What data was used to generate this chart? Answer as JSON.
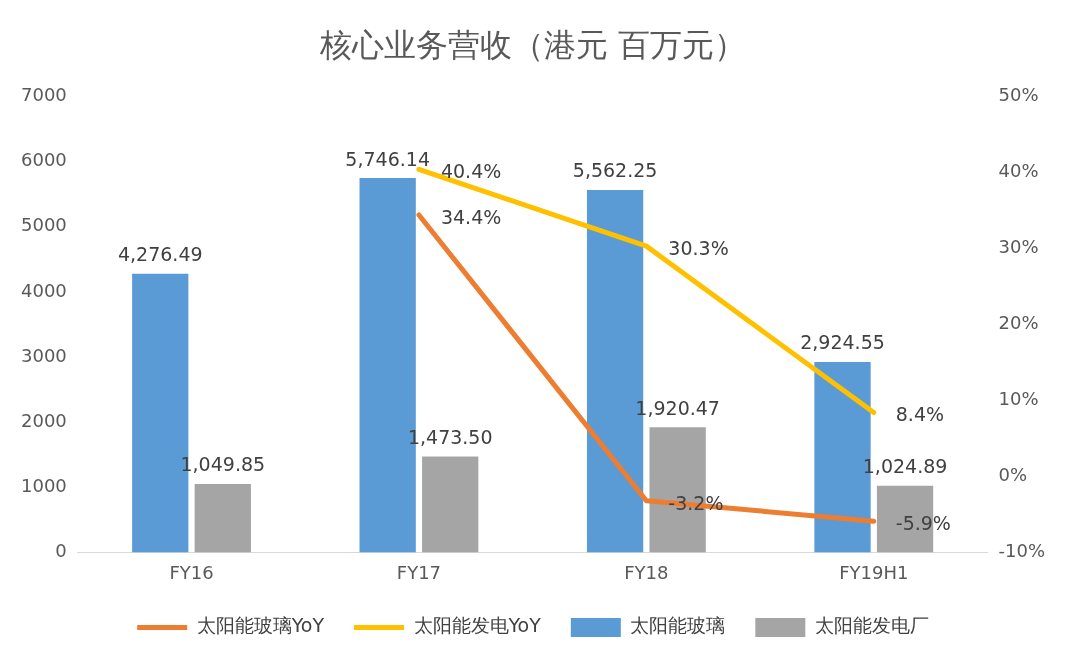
{
  "chart_data": {
    "type": "bar",
    "title": "核心业务营收（港元 百万元）",
    "categories": [
      "FY16",
      "FY17",
      "FY18",
      "FY19H1"
    ],
    "series": [
      {
        "name": "太阳能玻璃",
        "color": "#5b9bd5",
        "values": [
          4276.49,
          5746.14,
          5562.25,
          2924.55
        ],
        "value_labels": [
          "4,276.49",
          "5,746.14",
          "5,562.25",
          "2,924.55"
        ]
      },
      {
        "name": "太阳能发电厂",
        "color": "#a5a5a5",
        "values": [
          1049.85,
          1473.5,
          1920.47,
          1024.89
        ],
        "value_labels": [
          "1,049.85",
          "1,473.50",
          "1,920.47",
          "1,024.89"
        ]
      },
      {
        "name": "太阳能玻璃YoY",
        "type": "line",
        "axis": "y2",
        "color": "#ed7d31",
        "values": [
          null,
          34.4,
          -3.2,
          -5.9
        ],
        "value_labels": [
          null,
          "34.4%",
          "-3.2%",
          "-5.9%"
        ]
      },
      {
        "name": "太阳能发电YoY",
        "type": "line",
        "axis": "y2",
        "color": "#ffc000",
        "values": [
          null,
          40.4,
          30.3,
          8.4
        ],
        "value_labels": [
          null,
          "40.4%",
          "30.3%",
          "8.4%"
        ]
      }
    ],
    "ylim": [
      0,
      7000
    ],
    "yticks": [
      0,
      1000,
      2000,
      3000,
      4000,
      5000,
      6000,
      7000
    ],
    "y2lim": [
      -10,
      50
    ],
    "y2ticks": [
      {
        "value": -10,
        "label": "-10%"
      },
      {
        "value": 0,
        "label": "0%"
      },
      {
        "value": 10,
        "label": "10%"
      },
      {
        "value": 20,
        "label": "20%"
      },
      {
        "value": 30,
        "label": "30%"
      },
      {
        "value": 40,
        "label": "40%"
      },
      {
        "value": 50,
        "label": "50%"
      }
    ],
    "grid": false,
    "legend": "bottom",
    "marker": "none",
    "line_style": "solid"
  }
}
